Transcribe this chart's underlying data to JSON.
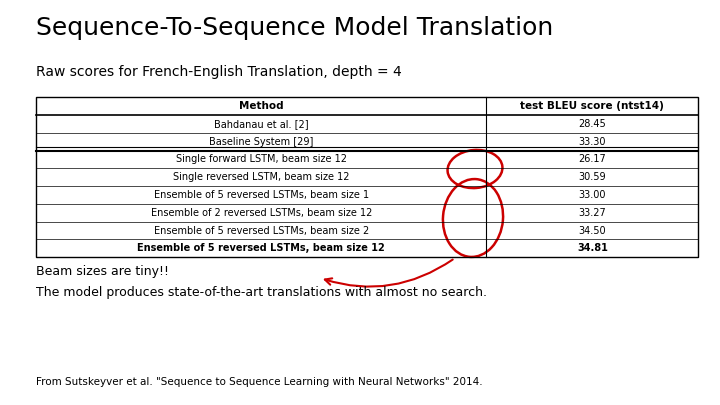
{
  "title": "Sequence-To-Sequence Model Translation",
  "subtitle": "Raw scores for French-English Translation, depth = 4",
  "col_headers": [
    "Method",
    "test BLEU score (ntst14)"
  ],
  "rows": [
    [
      "Bahdanau et al. [2]",
      "28.45",
      false
    ],
    [
      "Baseline System [29]",
      "33.30",
      false
    ],
    [
      "Single forward LSTM, beam size 12",
      "26.17",
      false
    ],
    [
      "Single reversed LSTM, beam size 12",
      "30.59",
      false
    ],
    [
      "Ensemble of 5 reversed LSTMs, beam size 1",
      "33.00",
      false
    ],
    [
      "Ensemble of 2 reversed LSTMs, beam size 12",
      "33.27",
      false
    ],
    [
      "Ensemble of 5 reversed LSTMs, beam size 2",
      "34.50",
      false
    ],
    [
      "Ensemble of 5 reversed LSTMs, beam size 12",
      "34.81",
      true
    ]
  ],
  "note1": "Beam sizes are tiny!!",
  "note2": "The model produces state-of-the-art translations with almost no search.",
  "footer": "From Sutskeyver et al. \"Sequence to Sequence Learning with Neural Networks\" 2014.",
  "bg_color": "#ffffff",
  "thick_sep_after_row": 1,
  "annotation_color": "#cc0000",
  "title_fontsize": 18,
  "subtitle_fontsize": 10,
  "table_fontsize": 7,
  "note_fontsize": 9,
  "footer_fontsize": 7.5
}
